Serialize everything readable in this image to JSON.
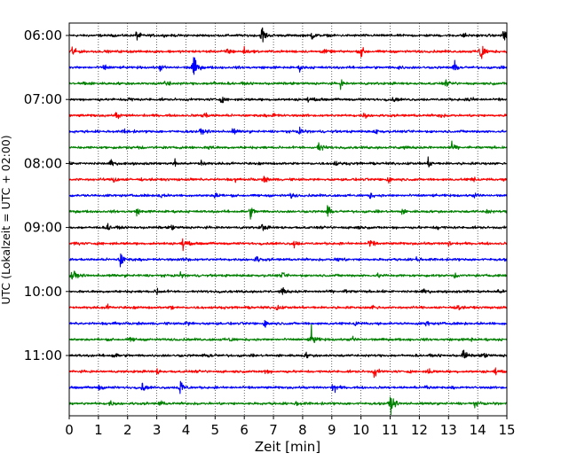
{
  "chart_data": {
    "type": "line",
    "title": "",
    "xlabel": "Zeit  [min]",
    "ylabel": "UTC (Lokalzeit = UTC + 02:00)",
    "xlim": [
      0,
      15
    ],
    "x_ticks": [
      "0",
      "1",
      "2",
      "3",
      "4",
      "5",
      "6",
      "7",
      "8",
      "9",
      "10",
      "11",
      "12",
      "13",
      "14",
      "15"
    ],
    "y_ticks": [
      "06:00",
      "07:00",
      "08:00",
      "09:00",
      "10:00",
      "11:00"
    ],
    "grid": "vertical dotted lines at each minute",
    "legend": "none",
    "colors": [
      "#000000",
      "#ff0000",
      "#0000ff",
      "#008000"
    ],
    "row_interval_minutes": 15,
    "series": [
      {
        "start": "06:00",
        "color": "black",
        "events": [
          [
            2.3,
            0.7
          ],
          [
            6.6,
            1.6
          ],
          [
            8.3,
            0.6
          ],
          [
            13.5,
            0.4
          ],
          [
            14.9,
            1.7
          ]
        ]
      },
      {
        "start": "06:15",
        "color": "red",
        "events": [
          [
            0.1,
            0.9
          ],
          [
            5.4,
            0.8
          ],
          [
            6.0,
            0.5
          ],
          [
            8.7,
            0.4
          ],
          [
            10.0,
            0.9
          ],
          [
            14.1,
            2.2
          ]
        ]
      },
      {
        "start": "06:30",
        "color": "blue",
        "events": [
          [
            1.2,
            0.5
          ],
          [
            3.1,
            0.5
          ],
          [
            4.25,
            2.2
          ],
          [
            7.9,
            0.4
          ],
          [
            11.3,
            0.4
          ],
          [
            13.2,
            0.8
          ]
        ]
      },
      {
        "start": "06:45",
        "color": "green",
        "events": [
          [
            0.5,
            0.3
          ],
          [
            3.3,
            0.8
          ],
          [
            4.9,
            0.4
          ],
          [
            9.3,
            0.5
          ],
          [
            12.9,
            0.4
          ]
        ]
      },
      {
        "start": "07:00",
        "color": "black",
        "events": [
          [
            2.0,
            0.5
          ],
          [
            5.2,
            0.4
          ],
          [
            8.2,
            0.4
          ],
          [
            11.1,
            0.3
          ],
          [
            13.7,
            0.4
          ]
        ]
      },
      {
        "start": "07:15",
        "color": "red",
        "events": [
          [
            1.6,
            0.5
          ],
          [
            4.6,
            0.7
          ],
          [
            7.0,
            0.4
          ],
          [
            10.1,
            0.4
          ],
          [
            12.7,
            0.3
          ]
        ]
      },
      {
        "start": "07:30",
        "color": "blue",
        "events": [
          [
            1.9,
            0.4
          ],
          [
            4.5,
            0.5
          ],
          [
            5.6,
            0.5
          ],
          [
            7.9,
            0.6
          ],
          [
            10.5,
            0.4
          ]
        ]
      },
      {
        "start": "07:45",
        "color": "green",
        "events": [
          [
            2.3,
            0.4
          ],
          [
            4.8,
            0.4
          ],
          [
            8.55,
            1.0
          ],
          [
            11.3,
            0.3
          ],
          [
            13.1,
            0.6
          ]
        ]
      },
      {
        "start": "08:00",
        "color": "black",
        "events": [
          [
            1.4,
            0.5
          ],
          [
            3.6,
            0.5
          ],
          [
            4.5,
            0.6
          ],
          [
            9.1,
            0.4
          ],
          [
            12.3,
            0.6
          ]
        ]
      },
      {
        "start": "08:15",
        "color": "red",
        "events": [
          [
            1.5,
            0.8
          ],
          [
            5.7,
            0.4
          ],
          [
            6.7,
            0.5
          ],
          [
            10.9,
            0.6
          ],
          [
            13.8,
            0.4
          ]
        ]
      },
      {
        "start": "08:30",
        "color": "blue",
        "events": [
          [
            3.1,
            0.4
          ],
          [
            5.0,
            0.7
          ],
          [
            7.6,
            0.4
          ],
          [
            10.3,
            0.4
          ],
          [
            13.9,
            0.4
          ]
        ]
      },
      {
        "start": "08:45",
        "color": "green",
        "events": [
          [
            2.3,
            0.5
          ],
          [
            6.2,
            1.0
          ],
          [
            8.85,
            0.8
          ],
          [
            11.4,
            0.4
          ],
          [
            14.3,
            0.4
          ]
        ]
      },
      {
        "start": "09:00",
        "color": "black",
        "events": [
          [
            1.3,
            0.6
          ],
          [
            3.5,
            0.4
          ],
          [
            6.6,
            0.6
          ],
          [
            9.8,
            0.4
          ],
          [
            12.6,
            0.4
          ]
        ]
      },
      {
        "start": "09:15",
        "color": "red",
        "events": [
          [
            0.2,
            0.4
          ],
          [
            3.9,
            0.9
          ],
          [
            7.7,
            0.6
          ],
          [
            10.3,
            0.7
          ],
          [
            13.0,
            0.4
          ]
        ]
      },
      {
        "start": "09:30",
        "color": "blue",
        "events": [
          [
            1.75,
            1.3
          ],
          [
            4.0,
            0.4
          ],
          [
            6.4,
            0.6
          ],
          [
            9.2,
            0.6
          ],
          [
            11.9,
            0.4
          ]
        ]
      },
      {
        "start": "09:45",
        "color": "green",
        "events": [
          [
            0.1,
            1.2
          ],
          [
            3.8,
            0.4
          ],
          [
            7.3,
            0.4
          ],
          [
            10.6,
            0.4
          ],
          [
            13.2,
            0.4
          ]
        ]
      },
      {
        "start": "10:00",
        "color": "black",
        "events": [
          [
            3.0,
            0.6
          ],
          [
            7.3,
            0.5
          ],
          [
            9.5,
            0.4
          ],
          [
            12.1,
            0.4
          ],
          [
            14.7,
            0.4
          ]
        ]
      },
      {
        "start": "10:15",
        "color": "red",
        "events": [
          [
            1.3,
            0.4
          ],
          [
            3.5,
            0.4
          ],
          [
            7.1,
            0.5
          ],
          [
            10.4,
            0.4
          ],
          [
            13.3,
            0.4
          ]
        ]
      },
      {
        "start": "10:30",
        "color": "blue",
        "events": [
          [
            1.5,
            0.4
          ],
          [
            4.0,
            0.4
          ],
          [
            6.7,
            0.6
          ],
          [
            9.8,
            0.4
          ],
          [
            12.2,
            0.4
          ]
        ]
      },
      {
        "start": "10:45",
        "color": "green",
        "events": [
          [
            2.1,
            0.4
          ],
          [
            5.5,
            0.4
          ],
          [
            8.3,
            1.6
          ],
          [
            9.7,
            0.4
          ],
          [
            13.7,
            0.4
          ]
        ]
      },
      {
        "start": "11:00",
        "color": "black",
        "events": [
          [
            1.5,
            0.6
          ],
          [
            4.8,
            0.4
          ],
          [
            8.1,
            0.4
          ],
          [
            13.5,
            1.2
          ],
          [
            14.2,
            0.5
          ]
        ]
      },
      {
        "start": "11:15",
        "color": "red",
        "events": [
          [
            3.0,
            0.4
          ],
          [
            6.7,
            0.4
          ],
          [
            10.45,
            0.8
          ],
          [
            12.3,
            0.4
          ],
          [
            14.6,
            0.4
          ]
        ]
      },
      {
        "start": "11:30",
        "color": "blue",
        "events": [
          [
            1.0,
            0.5
          ],
          [
            2.5,
            0.6
          ],
          [
            3.8,
            1.6
          ],
          [
            9.05,
            1.0
          ],
          [
            12.2,
            0.5
          ]
        ]
      },
      {
        "start": "11:45",
        "color": "green",
        "events": [
          [
            1.4,
            0.4
          ],
          [
            3.1,
            0.4
          ],
          [
            7.8,
            0.4
          ],
          [
            11.0,
            1.6
          ],
          [
            13.9,
            0.4
          ]
        ]
      }
    ]
  }
}
